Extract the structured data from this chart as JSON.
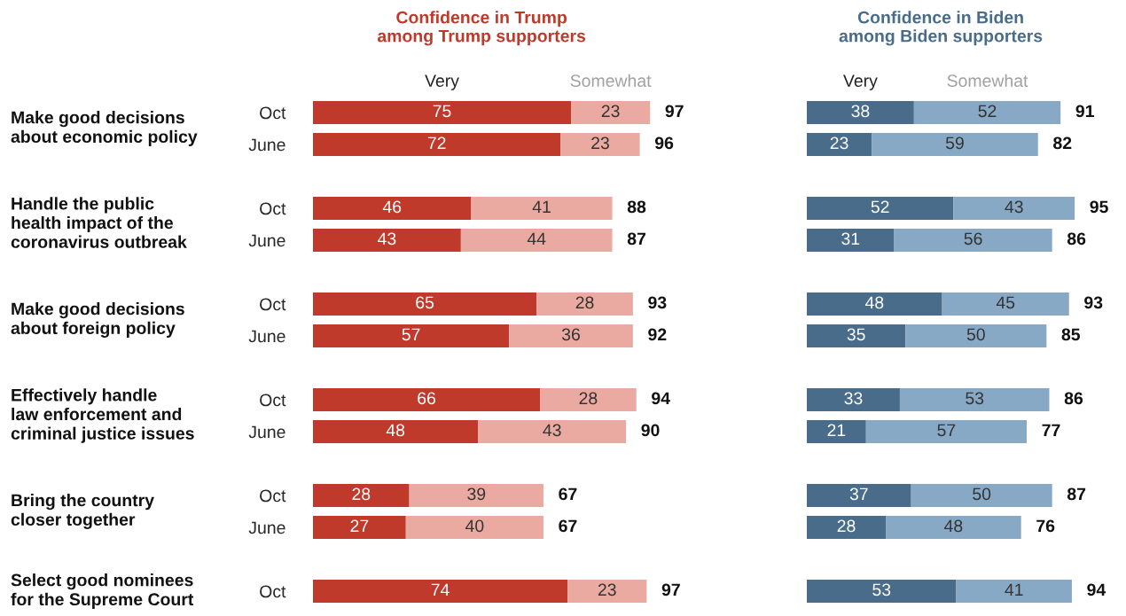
{
  "chart_data": [
    {
      "type": "bar",
      "orientation": "horizontal",
      "stacked": true,
      "title": "Confidence in Trump\namong Trump supporters",
      "categories": [
        "Oct",
        "June",
        "Oct",
        "June",
        "Oct",
        "June",
        "Oct",
        "June",
        "Oct",
        "June",
        "Oct"
      ],
      "series": [
        {
          "name": "Very",
          "color": "#bf3a2b",
          "values": [
            75,
            72,
            46,
            43,
            65,
            57,
            66,
            48,
            28,
            27,
            74
          ]
        },
        {
          "name": "Somewhat",
          "color": "#eaaaa1",
          "values": [
            23,
            23,
            41,
            44,
            28,
            36,
            28,
            43,
            39,
            40,
            23
          ]
        }
      ],
      "totals": [
        "97",
        "96",
        "88",
        "87",
        "93",
        "92",
        "94",
        "90",
        "67",
        "67",
        "97"
      ],
      "data_labels": true,
      "legend": "top",
      "tick_labels": "y",
      "annotations": [
        "Make good decisions\nabout economic policy",
        "Handle the public\nhealth impact of the\ncoronavirus outbreak",
        "Make good decisions\nabout foreign policy",
        "Effectively handle\nlaw enforcement and\ncriminal justice issues",
        "Bring the country\ncloser together",
        "Select good nominees\nfor the Supreme Court"
      ]
    },
    {
      "type": "bar",
      "orientation": "horizontal",
      "stacked": true,
      "title": "Confidence in Biden\namong Biden supporters",
      "categories": [
        null,
        null,
        null,
        null,
        null,
        null,
        null,
        null,
        null,
        null,
        null
      ],
      "series": [
        {
          "name": "Very",
          "color": "#486c8a",
          "values": [
            38,
            23,
            52,
            31,
            48,
            35,
            33,
            21,
            37,
            28,
            53
          ]
        },
        {
          "name": "Somewhat",
          "color": "#87a9c6",
          "values": [
            52,
            59,
            43,
            56,
            45,
            50,
            53,
            57,
            50,
            48,
            41
          ]
        }
      ],
      "totals": [
        "91",
        "82",
        "95",
        "86",
        "93",
        "85",
        "86",
        "77",
        "87",
        "76",
        "94"
      ],
      "data_labels": true,
      "legend": "top",
      "tick_labels": false
    }
  ]
}
